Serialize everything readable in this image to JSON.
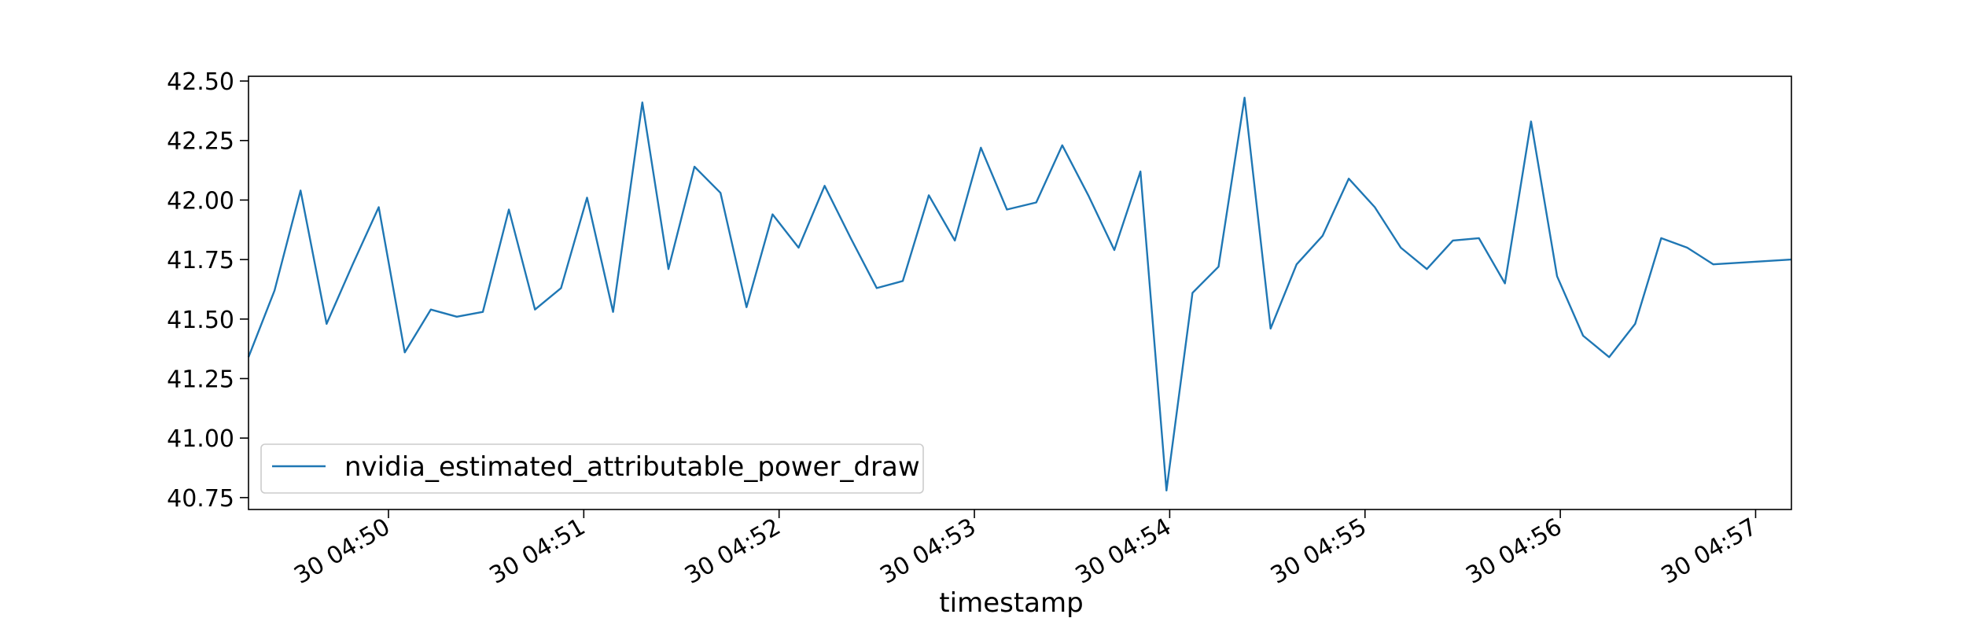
{
  "chart_data": {
    "type": "line",
    "title": "",
    "xlabel": "timestamp",
    "ylabel": "",
    "ylim": [
      40.7,
      42.52
    ],
    "grid": false,
    "legend_placement": "lower-left",
    "line_color": "#1f77b4",
    "x_range": [
      "04:49:17",
      "04:57:11"
    ],
    "x_ticks": [
      {
        "label": "30 04:50",
        "time": "04:50:00"
      },
      {
        "label": "30 04:51",
        "time": "04:51:00"
      },
      {
        "label": "30 04:52",
        "time": "04:52:00"
      },
      {
        "label": "30 04:53",
        "time": "04:53:00"
      },
      {
        "label": "30 04:54",
        "time": "04:54:00"
      },
      {
        "label": "30 04:55",
        "time": "04:55:00"
      },
      {
        "label": "30 04:56",
        "time": "04:56:00"
      },
      {
        "label": "30 04:57",
        "time": "04:57:00"
      }
    ],
    "y_ticks": [
      "40.75",
      "41.00",
      "41.25",
      "41.50",
      "41.75",
      "42.00",
      "42.25",
      "42.50"
    ],
    "series": [
      {
        "name": "nvidia_estimated_attributable_power_draw",
        "points": [
          [
            "04:49:17",
            41.34
          ],
          [
            "04:49:25",
            41.62
          ],
          [
            "04:49:33",
            42.04
          ],
          [
            "04:49:41",
            41.48
          ],
          [
            "04:49:49",
            41.73
          ],
          [
            "04:49:57",
            41.97
          ],
          [
            "04:50:05",
            41.36
          ],
          [
            "04:50:13",
            41.54
          ],
          [
            "04:50:21",
            41.51
          ],
          [
            "04:50:29",
            41.53
          ],
          [
            "04:50:37",
            41.96
          ],
          [
            "04:50:45",
            41.54
          ],
          [
            "04:50:53",
            41.63
          ],
          [
            "04:51:01",
            42.01
          ],
          [
            "04:51:09",
            41.53
          ],
          [
            "04:51:18",
            42.41
          ],
          [
            "04:51:26",
            41.71
          ],
          [
            "04:51:34",
            42.14
          ],
          [
            "04:51:42",
            42.03
          ],
          [
            "04:51:50",
            41.55
          ],
          [
            "04:51:58",
            41.94
          ],
          [
            "04:52:06",
            41.8
          ],
          [
            "04:52:14",
            42.06
          ],
          [
            "04:52:22",
            41.84
          ],
          [
            "04:52:30",
            41.63
          ],
          [
            "04:52:38",
            41.66
          ],
          [
            "04:52:46",
            42.02
          ],
          [
            "04:52:54",
            41.83
          ],
          [
            "04:53:02",
            42.22
          ],
          [
            "04:53:10",
            41.96
          ],
          [
            "04:53:19",
            41.99
          ],
          [
            "04:53:27",
            42.23
          ],
          [
            "04:53:35",
            42.02
          ],
          [
            "04:53:43",
            41.79
          ],
          [
            "04:53:51",
            42.12
          ],
          [
            "04:53:59",
            40.78
          ],
          [
            "04:54:07",
            41.61
          ],
          [
            "04:54:15",
            41.72
          ],
          [
            "04:54:23",
            42.43
          ],
          [
            "04:54:31",
            41.46
          ],
          [
            "04:54:39",
            41.73
          ],
          [
            "04:54:47",
            41.85
          ],
          [
            "04:54:55",
            42.09
          ],
          [
            "04:55:03",
            41.97
          ],
          [
            "04:55:11",
            41.8
          ],
          [
            "04:55:19",
            41.71
          ],
          [
            "04:55:27",
            41.83
          ],
          [
            "04:55:35",
            41.84
          ],
          [
            "04:55:43",
            41.65
          ],
          [
            "04:55:51",
            42.33
          ],
          [
            "04:55:59",
            41.68
          ],
          [
            "04:56:07",
            41.43
          ],
          [
            "04:56:15",
            41.34
          ],
          [
            "04:56:23",
            41.48
          ],
          [
            "04:56:31",
            41.84
          ],
          [
            "04:56:39",
            41.8
          ],
          [
            "04:56:47",
            41.73
          ],
          [
            "04:57:11",
            41.75
          ]
        ]
      }
    ]
  }
}
